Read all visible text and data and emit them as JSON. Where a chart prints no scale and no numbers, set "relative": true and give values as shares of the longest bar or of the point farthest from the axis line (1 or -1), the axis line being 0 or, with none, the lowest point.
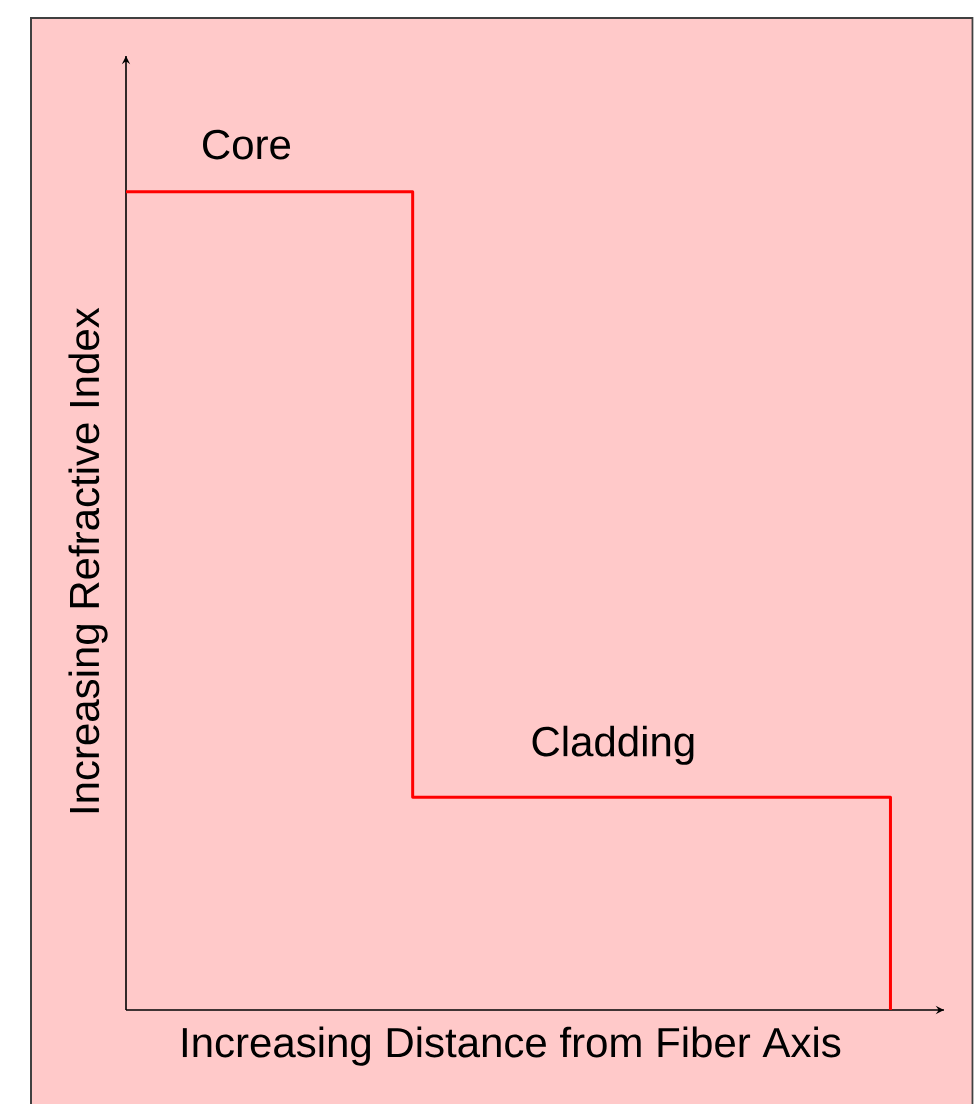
{
  "chart_data": {
    "type": "step",
    "relative": true,
    "xlabel": "Increasing Distance from Fiber Axis",
    "ylabel": "Increasing Refractive Index",
    "categories": [
      null,
      null,
      null,
      null,
      null,
      null,
      null,
      null,
      null
    ],
    "values": [
      1,
      1,
      1,
      0.26,
      0.26,
      0.26,
      0.26,
      0.26,
      0
    ],
    "color": "#ff0000",
    "annotations": [
      "Core",
      "Cladding"
    ]
  }
}
